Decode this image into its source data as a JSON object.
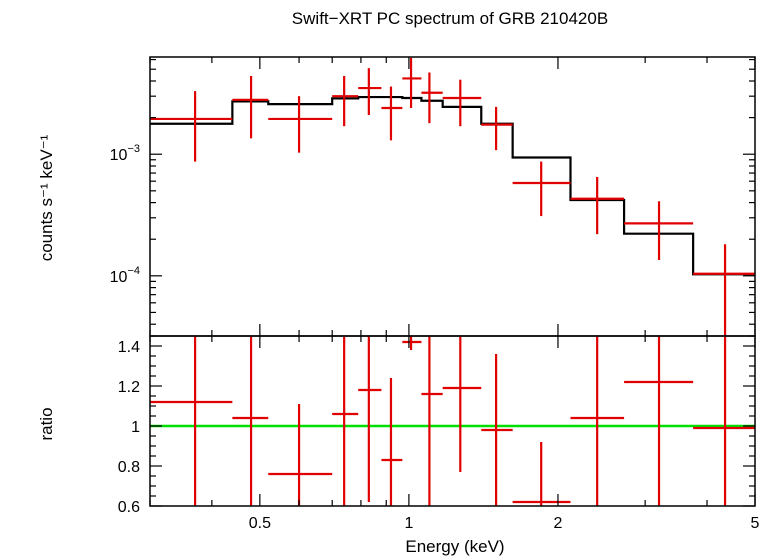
{
  "chart_data": {
    "title": "Swift−XRT PC spectrum of GRB 210420B",
    "xlabel": "Energy (keV)",
    "x_scale": "log",
    "xlim": [
      0.3,
      5.0
    ],
    "x_ticks": [
      {
        "value": 0.5,
        "label": "0.5"
      },
      {
        "value": 1,
        "label": "1"
      },
      {
        "value": 2,
        "label": "2"
      },
      {
        "value": 5,
        "label": "5"
      }
    ],
    "colors": {
      "data": "#e00000",
      "model": "#000000",
      "unity": "#00e000",
      "axes": "#000000"
    },
    "panels": [
      {
        "type": "scatter",
        "ylabel": "counts s⁻¹ keV⁻¹",
        "y_scale": "log",
        "ylim": [
          3.2e-05,
          0.0063
        ],
        "y_ticks": [
          {
            "value": 0.001,
            "base": "10",
            "exp": "−3"
          },
          {
            "value": 0.0001,
            "base": "10",
            "exp": "−4"
          }
        ],
        "data": [
          {
            "x": 0.37,
            "xlo": 0.3,
            "xhi": 0.44,
            "y": 0.00195,
            "ylo": 0.00087,
            "yhi": 0.0033
          },
          {
            "x": 0.48,
            "xlo": 0.44,
            "xhi": 0.52,
            "y": 0.0028,
            "ylo": 0.00135,
            "yhi": 0.0044
          },
          {
            "x": 0.6,
            "xlo": 0.52,
            "xhi": 0.7,
            "y": 0.00195,
            "ylo": 0.00103,
            "yhi": 0.003
          },
          {
            "x": 0.74,
            "xlo": 0.7,
            "xhi": 0.79,
            "y": 0.003,
            "ylo": 0.0017,
            "yhi": 0.0044
          },
          {
            "x": 0.83,
            "xlo": 0.79,
            "xhi": 0.88,
            "y": 0.0035,
            "ylo": 0.0021,
            "yhi": 0.0051
          },
          {
            "x": 0.92,
            "xlo": 0.88,
            "xhi": 0.97,
            "y": 0.0024,
            "ylo": 0.0013,
            "yhi": 0.0036
          },
          {
            "x": 1.01,
            "xlo": 0.97,
            "xhi": 1.06,
            "y": 0.0042,
            "ylo": 0.0024,
            "yhi": 0.0062
          },
          {
            "x": 1.1,
            "xlo": 1.06,
            "xhi": 1.17,
            "y": 0.0032,
            "ylo": 0.0018,
            "yhi": 0.0047
          },
          {
            "x": 1.27,
            "xlo": 1.17,
            "xhi": 1.4,
            "y": 0.0029,
            "ylo": 0.0017,
            "yhi": 0.0041
          },
          {
            "x": 1.5,
            "xlo": 1.4,
            "xhi": 1.62,
            "y": 0.00175,
            "ylo": 0.00108,
            "yhi": 0.00245
          },
          {
            "x": 1.85,
            "xlo": 1.62,
            "xhi": 2.12,
            "y": 0.00058,
            "ylo": 0.00031,
            "yhi": 0.00087
          },
          {
            "x": 2.4,
            "xlo": 2.12,
            "xhi": 2.72,
            "y": 0.00043,
            "ylo": 0.00022,
            "yhi": 0.00065
          },
          {
            "x": 3.2,
            "xlo": 2.72,
            "xhi": 3.75,
            "y": 0.00027,
            "ylo": 0.000135,
            "yhi": 0.00041
          },
          {
            "x": 4.35,
            "xlo": 3.75,
            "xhi": 5.0,
            "y": 0.000104,
            "ylo": 3.2e-05,
            "yhi": 0.000182
          }
        ],
        "model": [
          {
            "xlo": 0.3,
            "xhi": 0.44,
            "y": 0.00178
          },
          {
            "xlo": 0.44,
            "xhi": 0.52,
            "y": 0.00272
          },
          {
            "xlo": 0.52,
            "xhi": 0.7,
            "y": 0.00258
          },
          {
            "xlo": 0.7,
            "xhi": 0.79,
            "y": 0.00288
          },
          {
            "xlo": 0.79,
            "xhi": 0.97,
            "y": 0.00295
          },
          {
            "xlo": 0.97,
            "xhi": 1.06,
            "y": 0.0029
          },
          {
            "xlo": 1.06,
            "xhi": 1.17,
            "y": 0.00275
          },
          {
            "xlo": 1.17,
            "xhi": 1.4,
            "y": 0.00245
          },
          {
            "xlo": 1.4,
            "xhi": 1.62,
            "y": 0.00178
          },
          {
            "xlo": 1.62,
            "xhi": 2.12,
            "y": 0.00094
          },
          {
            "xlo": 2.12,
            "xhi": 2.72,
            "y": 0.00042
          },
          {
            "xlo": 2.72,
            "xhi": 3.75,
            "y": 0.000222
          },
          {
            "xlo": 3.75,
            "xhi": 5.0,
            "y": 0.000103
          }
        ]
      },
      {
        "type": "scatter",
        "ylabel": "ratio",
        "y_scale": "linear",
        "ylim": [
          0.6,
          1.45
        ],
        "y_ticks": [
          {
            "value": 0.6,
            "label": "0.6"
          },
          {
            "value": 0.8,
            "label": "0.8"
          },
          {
            "value": 1.0,
            "label": "1"
          },
          {
            "value": 1.2,
            "label": "1.2"
          },
          {
            "value": 1.4,
            "label": "1.4"
          }
        ],
        "reference_line": 1.0,
        "data": [
          {
            "x": 0.37,
            "xlo": 0.3,
            "xhi": 0.44,
            "y": 1.12,
            "ylo": 0.6,
            "yhi": 1.45
          },
          {
            "x": 0.48,
            "xlo": 0.44,
            "xhi": 0.52,
            "y": 1.04,
            "ylo": 0.6,
            "yhi": 1.45
          },
          {
            "x": 0.6,
            "xlo": 0.52,
            "xhi": 0.7,
            "y": 0.76,
            "ylo": 0.6,
            "yhi": 1.11
          },
          {
            "x": 0.74,
            "xlo": 0.7,
            "xhi": 0.79,
            "y": 1.06,
            "ylo": 0.6,
            "yhi": 1.45
          },
          {
            "x": 0.83,
            "xlo": 0.79,
            "xhi": 0.88,
            "y": 1.18,
            "ylo": 0.62,
            "yhi": 1.45
          },
          {
            "x": 0.92,
            "xlo": 0.88,
            "xhi": 0.97,
            "y": 0.83,
            "ylo": 0.6,
            "yhi": 1.24
          },
          {
            "x": 1.01,
            "xlo": 0.97,
            "xhi": 1.06,
            "y": 1.42,
            "ylo": 1.38,
            "yhi": 1.45
          },
          {
            "x": 1.1,
            "xlo": 1.06,
            "xhi": 1.17,
            "y": 1.16,
            "ylo": 0.6,
            "yhi": 1.45
          },
          {
            "x": 1.27,
            "xlo": 1.17,
            "xhi": 1.4,
            "y": 1.19,
            "ylo": 0.77,
            "yhi": 1.45
          },
          {
            "x": 1.5,
            "xlo": 1.4,
            "xhi": 1.62,
            "y": 0.98,
            "ylo": 0.6,
            "yhi": 1.36
          },
          {
            "x": 1.85,
            "xlo": 1.62,
            "xhi": 2.12,
            "y": 0.62,
            "ylo": 0.6,
            "yhi": 0.92
          },
          {
            "x": 2.4,
            "xlo": 2.12,
            "xhi": 2.72,
            "y": 1.04,
            "ylo": 0.6,
            "yhi": 1.45
          },
          {
            "x": 3.2,
            "xlo": 2.72,
            "xhi": 3.75,
            "y": 1.22,
            "ylo": 0.6,
            "yhi": 1.45
          },
          {
            "x": 4.35,
            "xlo": 3.75,
            "xhi": 5.0,
            "y": 0.99,
            "ylo": 0.6,
            "yhi": 1.45
          }
        ]
      }
    ]
  }
}
